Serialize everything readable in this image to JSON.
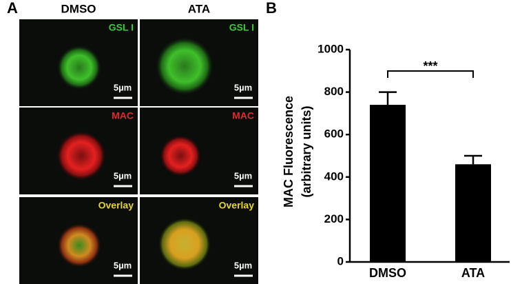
{
  "panel_labels": [
    "A",
    "B"
  ],
  "panel_a": {
    "columns": [
      "DMSO",
      "ATA"
    ],
    "rows": [
      "GSL I",
      "MAC",
      "Overlay"
    ],
    "scale_bar": "5µm"
  },
  "chart_data": {
    "type": "bar",
    "y_label": [
      "MAC Fluorescence",
      "(arbitrary units)"
    ],
    "categories": [
      "DMSO",
      "ATA"
    ],
    "values": [
      740,
      460
    ],
    "errors": [
      60,
      40
    ],
    "color": "#000000",
    "ylim": [
      0,
      1000
    ],
    "yticks": [
      0,
      200,
      400,
      600,
      800,
      1000
    ],
    "annotation": {
      "text": "***",
      "between": [
        0,
        1
      ]
    }
  }
}
